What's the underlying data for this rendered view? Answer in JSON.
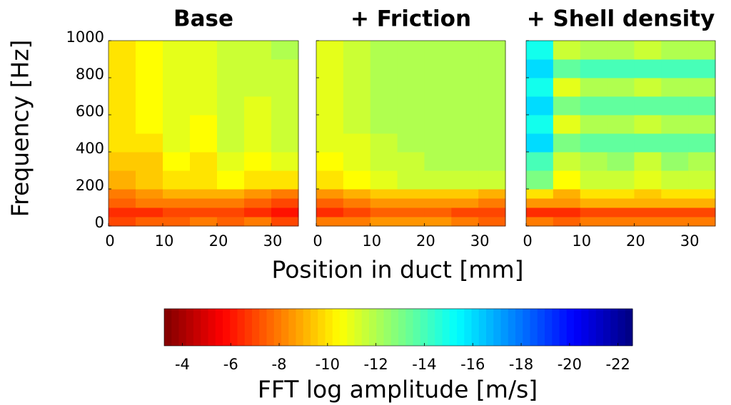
{
  "chart_data": [
    {
      "type": "heatmap",
      "title": "Base",
      "show_yticklabels": true,
      "xlim": [
        0,
        35
      ],
      "ylim": [
        0,
        1000
      ],
      "xticks": [
        0,
        10,
        20,
        30
      ],
      "yticks": [
        0,
        200,
        400,
        600,
        800,
        1000
      ],
      "xbins": [
        0,
        5,
        10,
        15,
        20,
        25,
        30,
        35
      ],
      "ybins": [
        0,
        50,
        100,
        150,
        200,
        300,
        400,
        500,
        600,
        700,
        800,
        900,
        1000
      ],
      "values": [
        [
          -7,
          -7.5,
          -7.5,
          -8,
          -7.5,
          -8,
          -7
        ],
        [
          -6.5,
          -6.5,
          -7,
          -7,
          -7,
          -6.5,
          -6
        ],
        [
          -7.5,
          -8,
          -8,
          -8,
          -8,
          -7.5,
          -7
        ],
        [
          -8,
          -8.5,
          -9,
          -9,
          -9,
          -8.5,
          -8
        ],
        [
          -9,
          -9.5,
          -10,
          -10,
          -10.5,
          -10,
          -10
        ],
        [
          -9.5,
          -9.5,
          -10.5,
          -10,
          -11,
          -10.5,
          -11
        ],
        [
          -10,
          -10,
          -11,
          -10.5,
          -11.5,
          -11,
          -11.5
        ],
        [
          -10,
          -10.5,
          -11,
          -10.5,
          -11.5,
          -11,
          -11.5
        ],
        [
          -10,
          -10.5,
          -11,
          -11,
          -11.5,
          -11,
          -11.5
        ],
        [
          -10,
          -10.5,
          -11,
          -11,
          -11.5,
          -11.5,
          -11.5
        ],
        [
          -10,
          -10.5,
          -11,
          -11,
          -11.5,
          -11.5,
          -11.5
        ],
        [
          -10,
          -10.5,
          -11,
          -11,
          -11.5,
          -11.5,
          -12
        ]
      ]
    },
    {
      "type": "heatmap",
      "title": "+ Friction",
      "show_yticklabels": false,
      "xlim": [
        0,
        35
      ],
      "ylim": [
        0,
        1000
      ],
      "xticks": [
        0,
        10,
        20,
        30
      ],
      "yticks": [
        0,
        200,
        400,
        600,
        800,
        1000
      ],
      "xbins": [
        0,
        5,
        10,
        15,
        20,
        25,
        30,
        35
      ],
      "ybins": [
        0,
        50,
        100,
        150,
        200,
        300,
        400,
        500,
        600,
        700,
        800,
        900,
        1000
      ],
      "values": [
        [
          -8,
          -8,
          -8.5,
          -8.5,
          -8.5,
          -8,
          -7.5
        ],
        [
          -6.5,
          -7,
          -7.5,
          -7.5,
          -7.5,
          -7,
          -7
        ],
        [
          -7.5,
          -8,
          -8.5,
          -8.5,
          -8.5,
          -8.5,
          -8
        ],
        [
          -8.5,
          -9,
          -9.5,
          -9.5,
          -9.5,
          -9.5,
          -9
        ],
        [
          -10,
          -10.5,
          -11,
          -11.5,
          -11.5,
          -11.5,
          -11.5
        ],
        [
          -10.5,
          -11,
          -11.5,
          -11.5,
          -12,
          -12,
          -12
        ],
        [
          -11,
          -11,
          -11.5,
          -12,
          -12,
          -12,
          -12
        ],
        [
          -11,
          -11.5,
          -12,
          -12,
          -12,
          -12,
          -12
        ],
        [
          -11,
          -11.5,
          -12,
          -12,
          -12,
          -12,
          -12
        ],
        [
          -11,
          -11.5,
          -12,
          -12,
          -12,
          -12,
          -12
        ],
        [
          -11,
          -11.5,
          -12,
          -12,
          -12,
          -12,
          -12
        ],
        [
          -11,
          -11.5,
          -12,
          -12,
          -12,
          -12,
          -12
        ]
      ]
    },
    {
      "type": "heatmap",
      "title": "+ Shell density",
      "show_yticklabels": false,
      "xlim": [
        0,
        35
      ],
      "ylim": [
        0,
        1000
      ],
      "xticks": [
        0,
        10,
        20,
        30
      ],
      "yticks": [
        0,
        200,
        400,
        600,
        800,
        1000
      ],
      "xbins": [
        0,
        5,
        10,
        15,
        20,
        25,
        30,
        35
      ],
      "ybins": [
        0,
        50,
        100,
        150,
        200,
        300,
        400,
        500,
        600,
        700,
        800,
        900,
        1000
      ],
      "values": [
        [
          -8,
          -7.5,
          -8,
          -8,
          -8,
          -8,
          -8
        ],
        [
          -6.5,
          -6.5,
          -7,
          -7,
          -7,
          -7,
          -7
        ],
        [
          -8.5,
          -8.5,
          -9,
          -9,
          -9,
          -9,
          -9
        ],
        [
          -10,
          -9,
          -10,
          -10,
          -9.5,
          -10,
          -10
        ],
        [
          -13,
          -10.5,
          -11.5,
          -11.5,
          -11,
          -11.5,
          -11.5
        ],
        [
          -14,
          -11.5,
          -12,
          -12.5,
          -11.5,
          -12.5,
          -12
        ],
        [
          -16,
          -13,
          -13.5,
          -13.5,
          -13.5,
          -13.5,
          -13.5
        ],
        [
          -15,
          -11,
          -12,
          -12,
          -11.5,
          -12,
          -12
        ],
        [
          -16,
          -13,
          -13.5,
          -13.5,
          -13.5,
          -13.5,
          -13.5
        ],
        [
          -15,
          -11,
          -12,
          -12,
          -11.5,
          -12,
          -12
        ],
        [
          -16,
          -13.5,
          -14,
          -14,
          -14,
          -14,
          -14
        ],
        [
          -15,
          -11.5,
          -12,
          -12,
          -11.5,
          -12,
          -12
        ]
      ]
    }
  ],
  "xlabel": "Position in duct [mm]",
  "ylabel": "Frequency [Hz]",
  "colorbar": {
    "label": "FFT log amplitude [m/s]",
    "colormap": "jet",
    "reverse": true,
    "lim": [
      -3.25,
      -22.6
    ],
    "ticks": [
      -4,
      -6,
      -8,
      -10,
      -12,
      -14,
      -16,
      -18,
      -20,
      -22
    ]
  }
}
